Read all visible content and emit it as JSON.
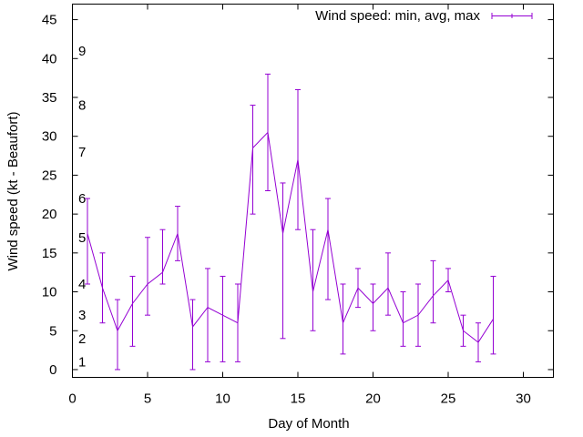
{
  "chart_data": {
    "type": "line",
    "title": "",
    "xlabel": "Day of Month",
    "ylabel": "Wind speed (kt - Beaufort)",
    "xlim": [
      0,
      32
    ],
    "ylim": [
      -1,
      47
    ],
    "xticks": [
      0,
      5,
      10,
      15,
      20,
      25,
      30
    ],
    "yticks": [
      0,
      5,
      10,
      15,
      20,
      25,
      30,
      35,
      40,
      45
    ],
    "grid": false,
    "legend_position": "top-right",
    "series": [
      {
        "name": "Wind speed: min, avg, max",
        "color": "#9400d3",
        "x": [
          1,
          2,
          3,
          4,
          5,
          6,
          7,
          8,
          9,
          10,
          11,
          12,
          13,
          14,
          15,
          16,
          17,
          18,
          19,
          20,
          21,
          22,
          23,
          24,
          25,
          26,
          27,
          28
        ],
        "avg": [
          17.5,
          10.5,
          5,
          8.5,
          11,
          12.5,
          17.5,
          5.5,
          8,
          7,
          6,
          28.5,
          30.5,
          17.5,
          27,
          10,
          18,
          6,
          10.5,
          8.5,
          10.5,
          6,
          7,
          9.5,
          11.5,
          5,
          3.5,
          6.5
        ],
        "min": [
          11,
          6,
          0,
          3,
          7,
          11,
          14,
          0,
          1,
          1,
          1,
          20,
          23,
          4,
          18,
          5,
          9,
          2,
          8,
          5,
          7,
          3,
          3,
          6,
          10,
          3,
          1,
          2
        ],
        "max": [
          22,
          15,
          9,
          12,
          17,
          18,
          21,
          9,
          13,
          12,
          11,
          34,
          38,
          24,
          36,
          18,
          22,
          11,
          13,
          11,
          15,
          10,
          11,
          14,
          13,
          7,
          6,
          12
        ]
      }
    ],
    "annotations": [
      {
        "text": "1",
        "y": 1
      },
      {
        "text": "2",
        "y": 4
      },
      {
        "text": "3",
        "y": 7
      },
      {
        "text": "4",
        "y": 11
      },
      {
        "text": "5",
        "y": 17
      },
      {
        "text": "6",
        "y": 22
      },
      {
        "text": "7",
        "y": 28
      },
      {
        "text": "8",
        "y": 34
      },
      {
        "text": "9",
        "y": 41
      }
    ]
  }
}
